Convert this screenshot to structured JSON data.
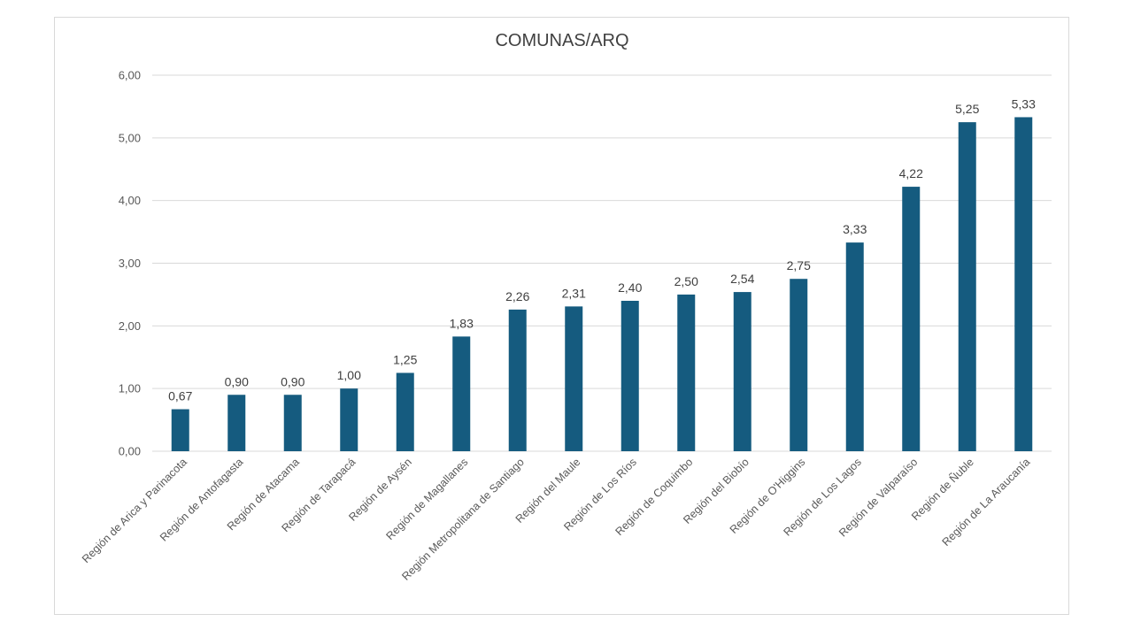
{
  "chart_data": {
    "type": "bar",
    "title": "COMUNAS/ARQ",
    "xlabel": "",
    "ylabel": "",
    "ylim": [
      0,
      6
    ],
    "y_ticks": [
      "0,00",
      "1,00",
      "2,00",
      "3,00",
      "4,00",
      "5,00",
      "6,00"
    ],
    "y_tick_values": [
      0,
      1,
      2,
      3,
      4,
      5,
      6
    ],
    "grid": true,
    "legend": "none",
    "bar_color": "#155B7F",
    "categories": [
      "Región de Arica y Parinacota",
      "Región de Antofagasta",
      "Región de Atacama",
      "Región de Tarapacá",
      "Región de Aysén",
      "Región de Magallanes",
      "Región Metropolitana de Santiago",
      "Región del Maule",
      "Región de Los Ríos",
      "Región de Coquimbo",
      "Región del Biobío",
      "Región de O'Higgins",
      "Región de Los Lagos",
      "Región de Valparaíso",
      "Región de Ñuble",
      "Región de La Araucanía"
    ],
    "values": [
      0.67,
      0.9,
      0.9,
      1.0,
      1.25,
      1.83,
      2.26,
      2.31,
      2.4,
      2.5,
      2.54,
      2.75,
      3.33,
      4.22,
      5.25,
      5.33
    ],
    "data_labels": [
      "0,67",
      "0,90",
      "0,90",
      "1,00",
      "1,25",
      "1,83",
      "2,26",
      "2,31",
      "2,40",
      "2,50",
      "2,54",
      "2,75",
      "3,33",
      "4,22",
      "5,25",
      "5,33"
    ]
  }
}
